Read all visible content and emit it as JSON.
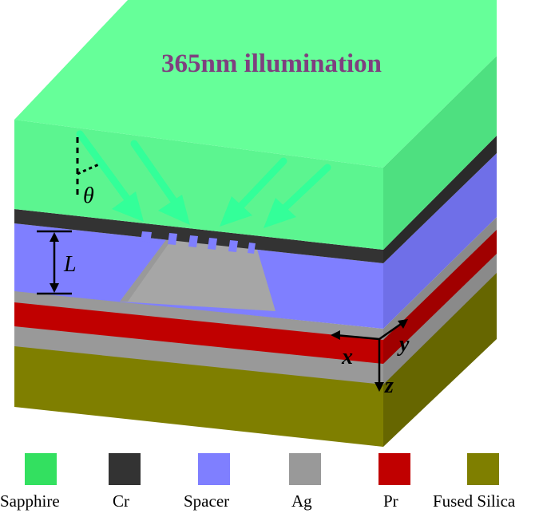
{
  "title": "365nm illumination",
  "labels": {
    "theta": "θ",
    "L": "L",
    "x": "x",
    "y": "y",
    "z": "z"
  },
  "legend": [
    {
      "name": "Sapphire",
      "color": "#33e060"
    },
    {
      "name": "Cr",
      "color": "#333333"
    },
    {
      "name": "Spacer",
      "color": "#7f7fff"
    },
    {
      "name": "Ag",
      "color": "#999999"
    },
    {
      "name": "Pr",
      "color": "#c00000"
    },
    {
      "name": "Fused Silica",
      "color": "#7f7f00"
    }
  ],
  "colors": {
    "sapphire_top": "#66ff99",
    "sapphire_front": "#33e060",
    "sapphire_side": "#22b84a",
    "cr": "#333333",
    "spacer": "#7f7fff",
    "ag": "#999999",
    "pr": "#c00000",
    "silica": "#7f7f00",
    "title": "#7f3f7f",
    "arrow": "#33ff99"
  }
}
